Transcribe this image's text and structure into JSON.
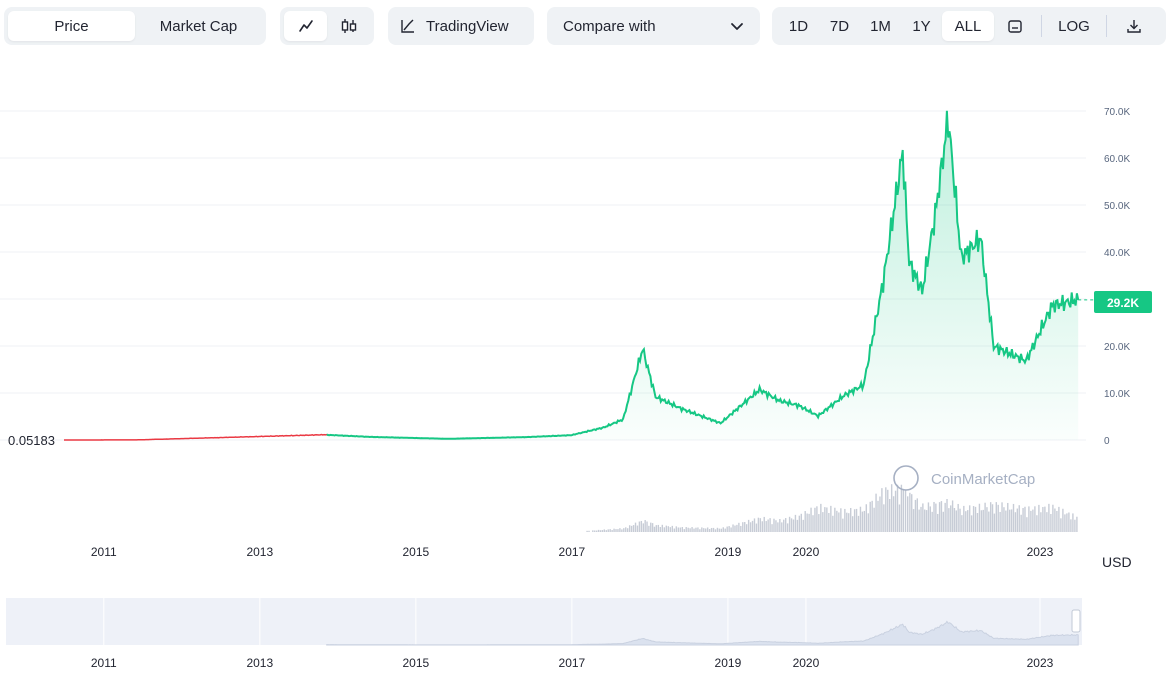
{
  "toolbar": {
    "type_tabs": [
      "Price",
      "Market Cap"
    ],
    "active_type": "Price",
    "chart_icons": [
      "line-chart-icon",
      "candlestick-icon"
    ],
    "tradingview_label": "TradingView",
    "compare_label": "Compare with",
    "ranges": [
      "1D",
      "7D",
      "1M",
      "1Y",
      "ALL"
    ],
    "active_range": "ALL",
    "log_label": "LOG",
    "icons": [
      "calendar-icon",
      "download-icon"
    ]
  },
  "chart_data": {
    "type": "area",
    "x_ticks": [
      "2011",
      "2013",
      "2015",
      "2017",
      "2019",
      "2020",
      "2023"
    ],
    "navigator_ticks": [
      "2011",
      "2013",
      "2015",
      "2017",
      "2019",
      "2020",
      "2023"
    ],
    "y_ticks": [
      "0",
      "10.0K",
      "20.0K",
      "30.0K",
      "40.0K",
      "50.0K",
      "60.0K",
      "70.0K"
    ],
    "y_range": [
      0,
      75000
    ],
    "currency": "USD",
    "start_label": "0.05183",
    "current_label": "29.2K",
    "watermark": "CoinMarketCap",
    "colors": {
      "line": "#16c784",
      "pre_line": "#ea3943",
      "area": "#16c784",
      "volume": "#c7ccd6",
      "navigator": "#eef1f8"
    },
    "x": [
      "2010-07",
      "2011-06",
      "2013-11",
      "2014-06",
      "2015-06",
      "2016-06",
      "2017-01",
      "2017-06",
      "2017-09",
      "2017-12",
      "2018-02",
      "2018-06",
      "2018-12",
      "2019-06",
      "2019-09",
      "2019-12",
      "2020-03",
      "2020-07",
      "2020-10",
      "2021-01",
      "2021-04",
      "2021-05",
      "2021-07",
      "2021-09",
      "2021-11",
      "2022-01",
      "2022-04",
      "2022-06",
      "2022-11",
      "2023-03",
      "2023-07"
    ],
    "values": [
      0.05,
      20,
      1100,
      650,
      250,
      600,
      1000,
      2600,
      4300,
      19000,
      9000,
      6500,
      3500,
      10500,
      8200,
      7200,
      5000,
      9300,
      11500,
      33000,
      60000,
      37000,
      31000,
      47000,
      67000,
      38000,
      42000,
      19500,
      16500,
      28000,
      29200
    ],
    "volume": [
      0,
      0,
      0,
      0,
      0,
      0,
      0,
      0.05,
      0.08,
      0.25,
      0.15,
      0.1,
      0.08,
      0.3,
      0.25,
      0.35,
      0.55,
      0.45,
      0.5,
      0.9,
      0.95,
      0.8,
      0.55,
      0.6,
      0.65,
      0.5,
      0.55,
      0.6,
      0.5,
      0.55,
      0.3
    ]
  }
}
